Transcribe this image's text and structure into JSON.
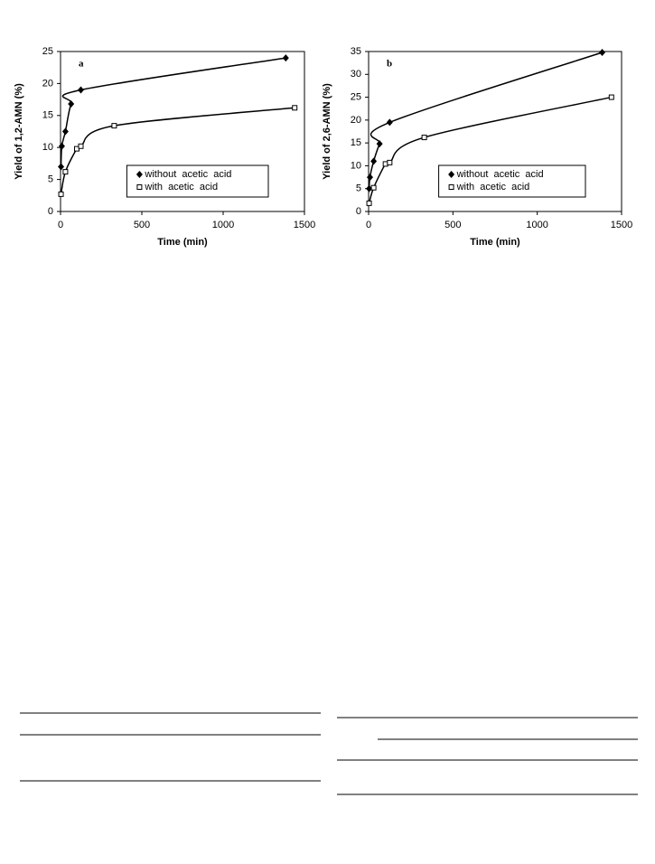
{
  "chart_data": [
    {
      "type": "line",
      "panel": "a",
      "ylabel": "Yield  of  1,2-AMN  (%)",
      "xlabel": "Time  (min)",
      "xlim": [
        0,
        1500
      ],
      "xticks": [
        0,
        500,
        1000,
        1500
      ],
      "ylim": [
        0,
        25
      ],
      "yticks": [
        0,
        5,
        10,
        15,
        20,
        25
      ],
      "legend": "lower right",
      "series": [
        {
          "name": "without  acetic  acid",
          "color": "#000000",
          "marker": "diamond",
          "x": [
            3,
            8,
            30,
            65,
            125,
            1385
          ],
          "values": [
            7,
            10.2,
            12.5,
            16.8,
            19,
            24
          ]
        },
        {
          "name": "with  acetic  acid",
          "color": "#000000",
          "marker": "square",
          "x": [
            3,
            30,
            100,
            125,
            330,
            1440
          ],
          "values": [
            2.7,
            6.2,
            9.8,
            10.2,
            13.4,
            16.2
          ]
        }
      ]
    },
    {
      "type": "line",
      "panel": "b",
      "ylabel": "Yield  of  2,6-AMN  (%)",
      "xlabel": "Time  (min)",
      "xlim": [
        0,
        1500
      ],
      "xticks": [
        0,
        500,
        1000,
        1500
      ],
      "ylim": [
        0,
        35
      ],
      "yticks": [
        0,
        5,
        10,
        15,
        20,
        25,
        30,
        35
      ],
      "legend": "lower right",
      "series": [
        {
          "name": "without  acetic  acid",
          "color": "#000000",
          "marker": "diamond",
          "x": [
            3,
            8,
            30,
            65,
            125,
            1385
          ],
          "values": [
            5,
            7.5,
            11,
            14.8,
            19.5,
            34.8
          ]
        },
        {
          "name": "with  acetic  acid",
          "color": "#000000",
          "marker": "square",
          "x": [
            3,
            30,
            100,
            125,
            330,
            1440
          ],
          "values": [
            1.8,
            5.2,
            10.4,
            10.7,
            16.2,
            25
          ]
        }
      ]
    }
  ]
}
